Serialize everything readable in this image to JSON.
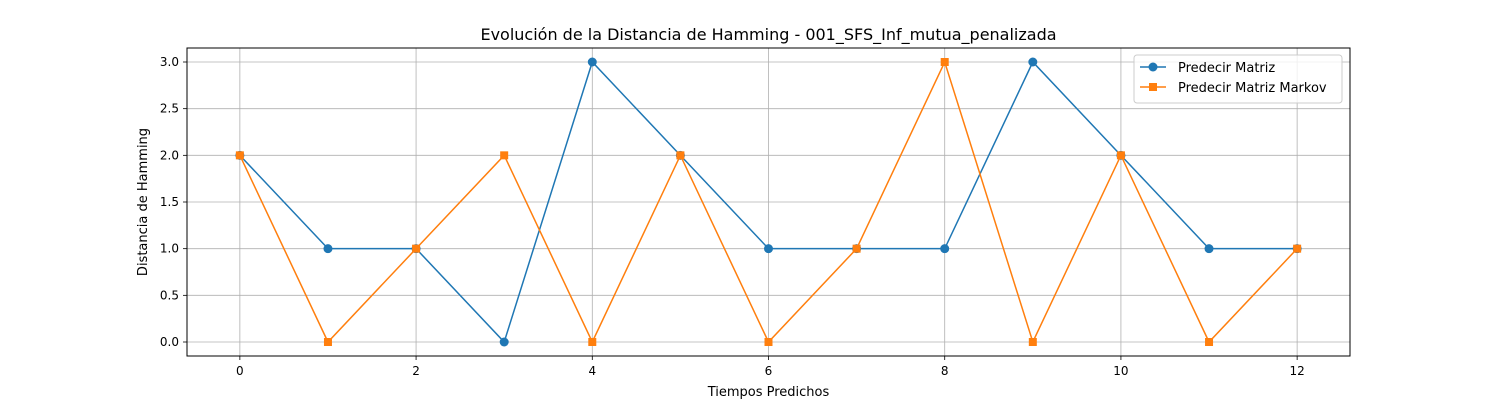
{
  "chart_data": {
    "type": "line",
    "title": "Evolución de la Distancia de Hamming - 001_SFS_Inf_mutua_penalizada",
    "xlabel": "Tiempos Predichos",
    "ylabel": "Distancia de Hamming",
    "x": [
      0,
      1,
      2,
      3,
      4,
      5,
      6,
      7,
      8,
      9,
      10,
      11,
      12
    ],
    "xlim": [
      -0.6,
      12.6
    ],
    "ylim": [
      -0.15,
      3.15
    ],
    "xticks": [
      0,
      2,
      4,
      6,
      8,
      10,
      12
    ],
    "yticks": [
      0.0,
      0.5,
      1.0,
      1.5,
      2.0,
      2.5,
      3.0
    ],
    "xtick_labels": [
      "0",
      "2",
      "4",
      "6",
      "8",
      "10",
      "12"
    ],
    "ytick_labels": [
      "0.0",
      "0.5",
      "1.0",
      "1.5",
      "2.0",
      "2.5",
      "3.0"
    ],
    "grid": true,
    "legend_position": "top-right",
    "series": [
      {
        "name": "Predecir Matriz",
        "marker": "circle",
        "color": "#1f77b4",
        "values": [
          2,
          1,
          1,
          0,
          3,
          2,
          1,
          1,
          1,
          3,
          2,
          1,
          1
        ]
      },
      {
        "name": "Predecir Matriz Markov",
        "marker": "square",
        "color": "#ff7f0e",
        "values": [
          2,
          0,
          1,
          2,
          0,
          2,
          0,
          1,
          3,
          0,
          2,
          0,
          1
        ]
      }
    ]
  }
}
